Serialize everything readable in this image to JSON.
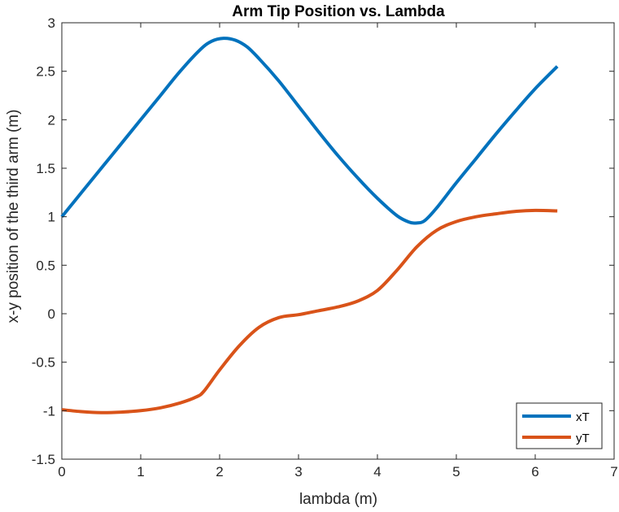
{
  "chart_data": {
    "type": "line",
    "title": "Arm Tip Position vs. Lambda",
    "xlabel": "lambda (m)",
    "ylabel": "x-y position of the third arm (m)",
    "xlim": [
      0,
      7
    ],
    "ylim": [
      -1.5,
      3
    ],
    "xticks": [
      0,
      1,
      2,
      3,
      4,
      5,
      6,
      7
    ],
    "yticks": [
      -1.5,
      -1,
      -0.5,
      0,
      0.5,
      1,
      1.5,
      2,
      2.5,
      3
    ],
    "xtick_labels": [
      "0",
      "1",
      "2",
      "3",
      "4",
      "5",
      "6",
      "7"
    ],
    "ytick_labels": [
      "-1.5",
      "-1",
      "-0.5",
      "0",
      "0.5",
      "1",
      "1.5",
      "2",
      "2.5",
      "3"
    ],
    "grid": false,
    "legend_position": "bottom-right",
    "series": [
      {
        "name": "xT",
        "color": "#0072BD",
        "x": [
          0,
          0.25,
          0.5,
          0.75,
          1.0,
          1.25,
          1.5,
          1.75,
          1.9,
          2.05,
          2.2,
          2.35,
          2.5,
          2.75,
          3.0,
          3.25,
          3.5,
          3.75,
          4.0,
          4.25,
          4.4,
          4.5,
          4.6,
          4.75,
          5.0,
          5.25,
          5.5,
          5.75,
          6.0,
          6.28
        ],
        "y": [
          1.0,
          1.25,
          1.5,
          1.75,
          2.0,
          2.25,
          2.5,
          2.72,
          2.81,
          2.84,
          2.82,
          2.75,
          2.63,
          2.4,
          2.14,
          1.88,
          1.63,
          1.4,
          1.19,
          1.01,
          0.945,
          0.935,
          0.96,
          1.09,
          1.35,
          1.6,
          1.85,
          2.09,
          2.32,
          2.55
        ]
      },
      {
        "name": "yT",
        "color": "#D95319",
        "x": [
          0,
          0.25,
          0.5,
          0.75,
          1.0,
          1.25,
          1.5,
          1.7,
          1.8,
          2.0,
          2.25,
          2.5,
          2.75,
          3.0,
          3.25,
          3.5,
          3.75,
          4.0,
          4.25,
          4.5,
          4.75,
          5.0,
          5.25,
          5.5,
          5.75,
          6.0,
          6.28
        ],
        "y": [
          -0.99,
          -1.01,
          -1.02,
          -1.015,
          -1.0,
          -0.97,
          -0.92,
          -0.86,
          -0.8,
          -0.58,
          -0.33,
          -0.14,
          -0.04,
          -0.01,
          0.03,
          0.07,
          0.13,
          0.24,
          0.45,
          0.69,
          0.86,
          0.95,
          1.0,
          1.03,
          1.055,
          1.065,
          1.06
        ]
      }
    ]
  }
}
